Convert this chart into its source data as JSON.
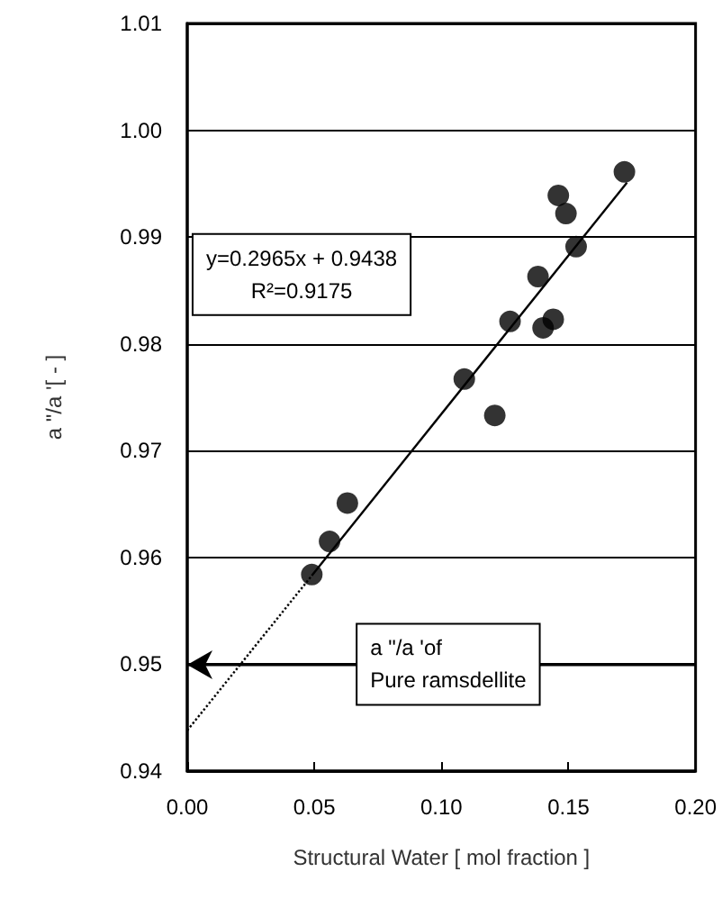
{
  "chart_data": {
    "type": "scatter",
    "xlabel": "Structural Water [ mol fraction ]",
    "ylabel": "a \"/a '[ - ]",
    "x": [
      0.172,
      0.146,
      0.149,
      0.153,
      0.138,
      0.127,
      0.144,
      0.14,
      0.109,
      0.121,
      0.063,
      0.056,
      0.049
    ],
    "series": [
      {
        "color": "#000000",
        "marker": "circle",
        "values": [
          0.9961,
          0.9939,
          0.9922,
          0.9891,
          0.9863,
          0.9821,
          0.9823,
          0.9815,
          0.9767,
          0.9733,
          0.9651,
          0.9615,
          0.9584
        ]
      },
      {
        "type": "line",
        "color": "#000000",
        "line_style": "dotted",
        "marker": "none",
        "x": [
          0,
          0.049
        ],
        "values": [
          0.9438,
          0.9583
        ]
      },
      {
        "type": "line",
        "color": "#000000",
        "line_style": "solid",
        "marker": "none",
        "x": [
          0.049,
          0.173
        ],
        "values": [
          0.9583,
          0.9951
        ]
      }
    ],
    "xlim": [
      0,
      0.2
    ],
    "xticks": [
      {
        "value": 0,
        "label": "0.00"
      },
      {
        "value": 0.05,
        "label": "0.05"
      },
      {
        "value": 0.1,
        "label": "0.10"
      },
      {
        "value": 0.15,
        "label": "0.15"
      },
      {
        "value": 0.2,
        "label": "0.20"
      }
    ],
    "ylim": [
      0.94,
      1.01
    ],
    "yticks": [
      {
        "value": 0.94,
        "label": "0.94"
      },
      {
        "value": 0.95,
        "label": "0.95"
      },
      {
        "value": 0.96,
        "label": "0.96"
      },
      {
        "value": 0.97,
        "label": "0.97"
      },
      {
        "value": 0.98,
        "label": "0.98"
      },
      {
        "value": 0.99,
        "label": "0.99"
      },
      {
        "value": 1.0,
        "label": "1.00"
      },
      {
        "value": 1.01,
        "label": "1.01"
      }
    ],
    "grid": "y",
    "ref_lines": [
      {
        "axis": "y",
        "value": 0.95,
        "label": "a \"/a 'of\nPure ramsdellite"
      }
    ],
    "annotations": [
      "y=0.2965x + 0.9438\nR²=0.9175"
    ]
  }
}
